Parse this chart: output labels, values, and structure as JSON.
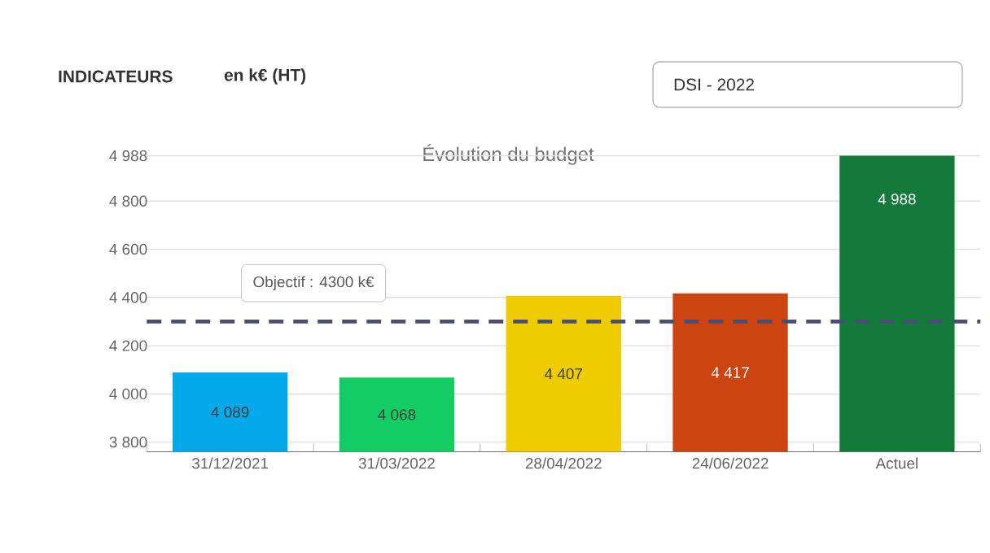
{
  "chart_data": {
    "type": "bar",
    "title": "Évolution du budget",
    "categories": [
      "31/12/2021",
      "31/03/2022",
      "28/04/2022",
      "24/06/2022",
      "Actuel"
    ],
    "values": [
      4089,
      4068,
      4407,
      4417,
      4988
    ],
    "colors": [
      "#03a9e8",
      "#13cc63",
      "#eecc00",
      "#cc4410",
      "#137a3c"
    ],
    "value_labels": [
      "4 089",
      "4 068",
      "4 407",
      "4 417",
      "4 988"
    ],
    "ylim": [
      3760,
      4988
    ],
    "yticks": [
      {
        "value": 3800,
        "label": "3 800"
      },
      {
        "value": 4000,
        "label": "4 000"
      },
      {
        "value": 4200,
        "label": "4 200"
      },
      {
        "value": 4400,
        "label": "4 400"
      },
      {
        "value": 4600,
        "label": "4 600"
      },
      {
        "value": 4800,
        "label": "4 800"
      },
      {
        "value": 4988,
        "label": "4 988"
      }
    ],
    "grid": "y",
    "ref_lines": [
      {
        "axis": "y",
        "value": 4300,
        "label": "Objectif : 4300 k€",
        "color": "#4a4e75",
        "line_style": "dashed"
      }
    ],
    "annotations": [
      "INDICATEURS",
      "en k€ (HT)",
      "DSI - 2022"
    ]
  }
}
